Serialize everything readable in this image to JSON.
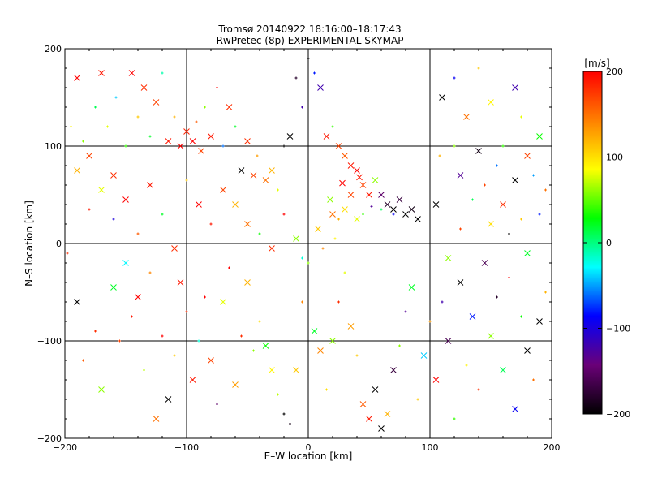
{
  "chart_data": {
    "type": "scatter",
    "title": "Tromsø 20140922 18:16:00–18:17:43",
    "subtitle": "RwPretec (8p) EXPERIMENTAL SKYMAP",
    "xlabel": "E–W location [km]",
    "ylabel": "N–S location [km]",
    "xlim": [
      -200,
      200
    ],
    "ylim": [
      -200,
      200
    ],
    "xticks": [
      -200,
      -100,
      0,
      100,
      200
    ],
    "yticks": [
      -200,
      -100,
      0,
      100,
      200
    ],
    "xtick_labels": [
      "−200",
      "−100",
      "0",
      "100",
      "200"
    ],
    "ytick_labels": [
      "−200",
      "−100",
      "0",
      "100",
      "200"
    ],
    "grid_lines": [
      -100,
      0,
      100
    ],
    "grid": true,
    "colorbar": {
      "unit": "[m/s]",
      "min": -200,
      "max": 200,
      "ticks": [
        200,
        100,
        0,
        -100,
        -200
      ],
      "tick_labels": [
        "200",
        "100",
        "0",
        "−100",
        "−200"
      ],
      "colors": [
        "#000000",
        "#6a0078",
        "#0000ff",
        "#00ffff",
        "#00ff00",
        "#ffff00",
        "#ff8000",
        "#ff0000"
      ]
    },
    "marker_types": [
      "+",
      "x"
    ],
    "points": [
      [
        -195,
        120,
        "+",
        90
      ],
      [
        -190,
        170,
        "x",
        200
      ],
      [
        -185,
        105,
        "+",
        60
      ],
      [
        -180,
        90,
        "x",
        170
      ],
      [
        -175,
        140,
        "+",
        10
      ],
      [
        -170,
        175,
        "x",
        190
      ],
      [
        -165,
        120,
        "+",
        80
      ],
      [
        -160,
        70,
        "x",
        180
      ],
      [
        -158,
        150,
        "+",
        -40
      ],
      [
        -150,
        100,
        "+",
        40
      ],
      [
        -145,
        175,
        "x",
        200
      ],
      [
        -140,
        130,
        "+",
        110
      ],
      [
        -135,
        160,
        "x",
        180
      ],
      [
        -130,
        110,
        "+",
        20
      ],
      [
        -125,
        145,
        "x",
        170
      ],
      [
        -120,
        175,
        "+",
        -10
      ],
      [
        -115,
        105,
        "x",
        190
      ],
      [
        -110,
        130,
        "+",
        120
      ],
      [
        -105,
        100,
        "x",
        200
      ],
      [
        -100,
        115,
        "x",
        185
      ],
      [
        -95,
        105,
        "x",
        200
      ],
      [
        -92,
        125,
        "+",
        160
      ],
      [
        -88,
        95,
        "x",
        170
      ],
      [
        -85,
        140,
        "+",
        60
      ],
      [
        -80,
        110,
        "x",
        190
      ],
      [
        -75,
        160,
        "+",
        200
      ],
      [
        -70,
        100,
        "+",
        -60
      ],
      [
        -65,
        140,
        "x",
        180
      ],
      [
        -60,
        120,
        "+",
        20
      ],
      [
        -55,
        75,
        "x",
        -200
      ],
      [
        -50,
        105,
        "x",
        180
      ],
      [
        -45,
        70,
        "x",
        170
      ],
      [
        -42,
        90,
        "+",
        130
      ],
      [
        -35,
        65,
        "x",
        150
      ],
      [
        -30,
        75,
        "x",
        120
      ],
      [
        -25,
        55,
        "+",
        80
      ],
      [
        -20,
        100,
        "+",
        -200
      ],
      [
        -15,
        110,
        "x",
        -200
      ],
      [
        -10,
        170,
        "+",
        -180
      ],
      [
        -5,
        140,
        "+",
        -120
      ],
      [
        0,
        190,
        "+",
        -200
      ],
      [
        5,
        175,
        "+",
        -80
      ],
      [
        10,
        160,
        "x",
        -120
      ],
      [
        15,
        110,
        "x",
        190
      ],
      [
        20,
        120,
        "+",
        40
      ],
      [
        25,
        100,
        "x",
        170
      ],
      [
        30,
        90,
        "x",
        160
      ],
      [
        35,
        80,
        "x",
        190
      ],
      [
        40,
        75,
        "x",
        200
      ],
      [
        45,
        60,
        "x",
        170
      ],
      [
        50,
        50,
        "x",
        190
      ],
      [
        55,
        65,
        "x",
        60
      ],
      [
        60,
        50,
        "x",
        -150
      ],
      [
        65,
        40,
        "x",
        -180
      ],
      [
        70,
        35,
        "x",
        -200
      ],
      [
        75,
        45,
        "x",
        -170
      ],
      [
        80,
        30,
        "x",
        -200
      ],
      [
        85,
        35,
        "x",
        -190
      ],
      [
        90,
        25,
        "x",
        -200
      ],
      [
        70,
        30,
        "+",
        -90
      ],
      [
        60,
        35,
        "+",
        10
      ],
      [
        52,
        38,
        "+",
        -130
      ],
      [
        45,
        30,
        "+",
        40
      ],
      [
        40,
        25,
        "x",
        80
      ],
      [
        30,
        35,
        "x",
        100
      ],
      [
        25,
        25,
        "+",
        120
      ],
      [
        20,
        30,
        "x",
        150
      ],
      [
        35,
        50,
        "x",
        170
      ],
      [
        28,
        62,
        "x",
        200
      ],
      [
        42,
        68,
        "x",
        190
      ],
      [
        -198,
        -10,
        "+",
        180
      ],
      [
        -190,
        -60,
        "x",
        -200
      ],
      [
        -185,
        -120,
        "+",
        160
      ],
      [
        -175,
        -90,
        "+",
        180
      ],
      [
        -170,
        -150,
        "x",
        60
      ],
      [
        -160,
        -45,
        "x",
        20
      ],
      [
        -155,
        -100,
        "+",
        170
      ],
      [
        -150,
        -20,
        "x",
        -30
      ],
      [
        -145,
        -75,
        "+",
        190
      ],
      [
        -140,
        -55,
        "x",
        200
      ],
      [
        -135,
        -130,
        "+",
        70
      ],
      [
        -130,
        -30,
        "+",
        140
      ],
      [
        -125,
        -180,
        "x",
        150
      ],
      [
        -120,
        -95,
        "+",
        200
      ],
      [
        -115,
        -160,
        "x",
        -200
      ],
      [
        -110,
        -115,
        "+",
        110
      ],
      [
        -105,
        -40,
        "x",
        190
      ],
      [
        -100,
        -70,
        "+",
        180
      ],
      [
        -95,
        -140,
        "x",
        190
      ],
      [
        -90,
        -100,
        "+",
        -20
      ],
      [
        -85,
        -55,
        "+",
        200
      ],
      [
        -80,
        -120,
        "x",
        170
      ],
      [
        -75,
        -165,
        "+",
        -150
      ],
      [
        -70,
        -60,
        "x",
        80
      ],
      [
        -65,
        -25,
        "+",
        200
      ],
      [
        -60,
        -145,
        "x",
        130
      ],
      [
        -55,
        -95,
        "+",
        180
      ],
      [
        -50,
        -40,
        "x",
        120
      ],
      [
        -45,
        -110,
        "+",
        60
      ],
      [
        -40,
        -80,
        "+",
        100
      ],
      [
        -35,
        -105,
        "x",
        30
      ],
      [
        -30,
        -130,
        "x",
        90
      ],
      [
        -25,
        -155,
        "+",
        70
      ],
      [
        -20,
        -175,
        "+",
        -200
      ],
      [
        -15,
        -185,
        "+",
        -190
      ],
      [
        -10,
        -130,
        "x",
        110
      ],
      [
        -5,
        -60,
        "+",
        140
      ],
      [
        0,
        -20,
        "+",
        60
      ],
      [
        5,
        -90,
        "x",
        20
      ],
      [
        10,
        -110,
        "x",
        140
      ],
      [
        15,
        -150,
        "+",
        100
      ],
      [
        20,
        -100,
        "x",
        60
      ],
      [
        25,
        -60,
        "+",
        180
      ],
      [
        30,
        -30,
        "+",
        80
      ],
      [
        35,
        -85,
        "x",
        130
      ],
      [
        40,
        -115,
        "+",
        110
      ],
      [
        45,
        -165,
        "x",
        160
      ],
      [
        50,
        -180,
        "x",
        190
      ],
      [
        55,
        -150,
        "x",
        -200
      ],
      [
        60,
        -190,
        "x",
        -200
      ],
      [
        65,
        -175,
        "x",
        120
      ],
      [
        70,
        -130,
        "x",
        -170
      ],
      [
        75,
        -105,
        "+",
        60
      ],
      [
        80,
        -70,
        "+",
        -130
      ],
      [
        85,
        -45,
        "x",
        20
      ],
      [
        90,
        -160,
        "+",
        110
      ],
      [
        95,
        -115,
        "x",
        -40
      ],
      [
        100,
        -80,
        "+",
        130
      ],
      [
        105,
        -140,
        "x",
        200
      ],
      [
        110,
        -60,
        "+",
        -120
      ],
      [
        115,
        -100,
        "x",
        -160
      ],
      [
        120,
        -180,
        "+",
        40
      ],
      [
        125,
        -40,
        "x",
        -200
      ],
      [
        130,
        -125,
        "+",
        90
      ],
      [
        135,
        -75,
        "x",
        -80
      ],
      [
        140,
        -150,
        "+",
        180
      ],
      [
        145,
        -20,
        "x",
        -160
      ],
      [
        150,
        -95,
        "x",
        60
      ],
      [
        155,
        -55,
        "+",
        -180
      ],
      [
        160,
        -130,
        "x",
        10
      ],
      [
        165,
        -35,
        "+",
        200
      ],
      [
        170,
        -170,
        "x",
        -90
      ],
      [
        175,
        -75,
        "+",
        30
      ],
      [
        180,
        -110,
        "x",
        -200
      ],
      [
        185,
        -140,
        "+",
        150
      ],
      [
        190,
        -80,
        "x",
        -200
      ],
      [
        195,
        -50,
        "+",
        120
      ],
      [
        110,
        150,
        "x",
        -200
      ],
      [
        120,
        170,
        "+",
        -90
      ],
      [
        130,
        130,
        "x",
        150
      ],
      [
        140,
        180,
        "+",
        110
      ],
      [
        150,
        145,
        "x",
        90
      ],
      [
        160,
        100,
        "+",
        40
      ],
      [
        170,
        160,
        "x",
        -120
      ],
      [
        175,
        130,
        "+",
        80
      ],
      [
        180,
        90,
        "x",
        170
      ],
      [
        185,
        70,
        "+",
        -50
      ],
      [
        190,
        110,
        "x",
        30
      ],
      [
        195,
        55,
        "+",
        150
      ],
      [
        120,
        100,
        "+",
        60
      ],
      [
        125,
        70,
        "x",
        -130
      ],
      [
        135,
        45,
        "+",
        10
      ],
      [
        140,
        95,
        "x",
        -190
      ],
      [
        145,
        60,
        "+",
        170
      ],
      [
        150,
        20,
        "x",
        100
      ],
      [
        155,
        80,
        "+",
        -60
      ],
      [
        160,
        40,
        "x",
        180
      ],
      [
        165,
        10,
        "+",
        -200
      ],
      [
        170,
        65,
        "x",
        -200
      ],
      [
        175,
        25,
        "+",
        110
      ],
      [
        180,
        -10,
        "x",
        20
      ],
      [
        190,
        30,
        "+",
        -80
      ],
      [
        115,
        -15,
        "x",
        60
      ],
      [
        125,
        15,
        "+",
        170
      ],
      [
        105,
        40,
        "x",
        -200
      ],
      [
        108,
        90,
        "+",
        120
      ],
      [
        -60,
        40,
        "x",
        120
      ],
      [
        -50,
        20,
        "x",
        150
      ],
      [
        -40,
        10,
        "+",
        30
      ],
      [
        -30,
        -5,
        "x",
        180
      ],
      [
        -20,
        30,
        "+",
        200
      ],
      [
        -10,
        5,
        "x",
        60
      ],
      [
        -5,
        -15,
        "+",
        -20
      ],
      [
        8,
        15,
        "x",
        110
      ],
      [
        12,
        -5,
        "+",
        140
      ],
      [
        18,
        45,
        "x",
        60
      ],
      [
        22,
        5,
        "+",
        90
      ],
      [
        -70,
        55,
        "x",
        170
      ],
      [
        -80,
        20,
        "+",
        190
      ],
      [
        -90,
        40,
        "x",
        200
      ],
      [
        -100,
        65,
        "+",
        110
      ],
      [
        -110,
        -5,
        "x",
        180
      ],
      [
        -120,
        30,
        "+",
        20
      ],
      [
        -130,
        60,
        "x",
        190
      ],
      [
        -140,
        10,
        "+",
        160
      ],
      [
        -150,
        45,
        "x",
        200
      ],
      [
        -160,
        25,
        "+",
        -100
      ],
      [
        -170,
        55,
        "x",
        80
      ],
      [
        -180,
        35,
        "+",
        190
      ],
      [
        -190,
        75,
        "x",
        120
      ]
    ]
  }
}
